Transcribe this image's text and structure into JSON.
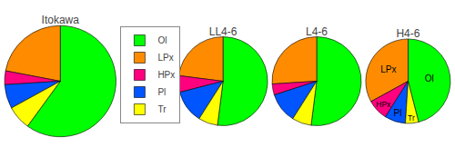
{
  "chart_data": [
    {
      "type": "pie",
      "title": "Itokawa",
      "categories": [
        "Ol",
        "LPx",
        "HPx",
        "Pl",
        "Tr"
      ],
      "values": [
        60,
        22,
        4,
        7,
        7
      ],
      "colors": [
        "#00ff00",
        "#ff8c00",
        "#ff007f",
        "#0055ff",
        "#ffff00"
      ],
      "legend": "right"
    },
    {
      "type": "pie",
      "title": "LL4-6",
      "categories": [
        "Ol",
        "LPx",
        "HPx",
        "Pl",
        "Tr"
      ],
      "values": [
        52,
        23,
        6,
        12,
        7
      ],
      "colors": [
        "#00ff00",
        "#ff8c00",
        "#ff007f",
        "#0055ff",
        "#ffff00"
      ]
    },
    {
      "type": "pie",
      "title": "L4-6",
      "categories": [
        "Ol",
        "LPx",
        "HPx",
        "Pl",
        "Tr"
      ],
      "values": [
        52,
        26,
        4,
        11,
        7
      ],
      "colors": [
        "#00ff00",
        "#ff8c00",
        "#ff007f",
        "#0055ff",
        "#ffff00"
      ]
    },
    {
      "type": "pie",
      "title": "H4-6",
      "categories": [
        "Ol",
        "LPx",
        "HPx",
        "Pl",
        "Tr"
      ],
      "values": [
        46,
        33,
        8,
        8,
        5
      ],
      "colors": [
        "#00ff00",
        "#ff8c00",
        "#ff007f",
        "#0055ff",
        "#ffff00"
      ],
      "annotations": [
        "Ol",
        "LPx",
        "HPx",
        "Pl",
        "Tr"
      ]
    }
  ]
}
